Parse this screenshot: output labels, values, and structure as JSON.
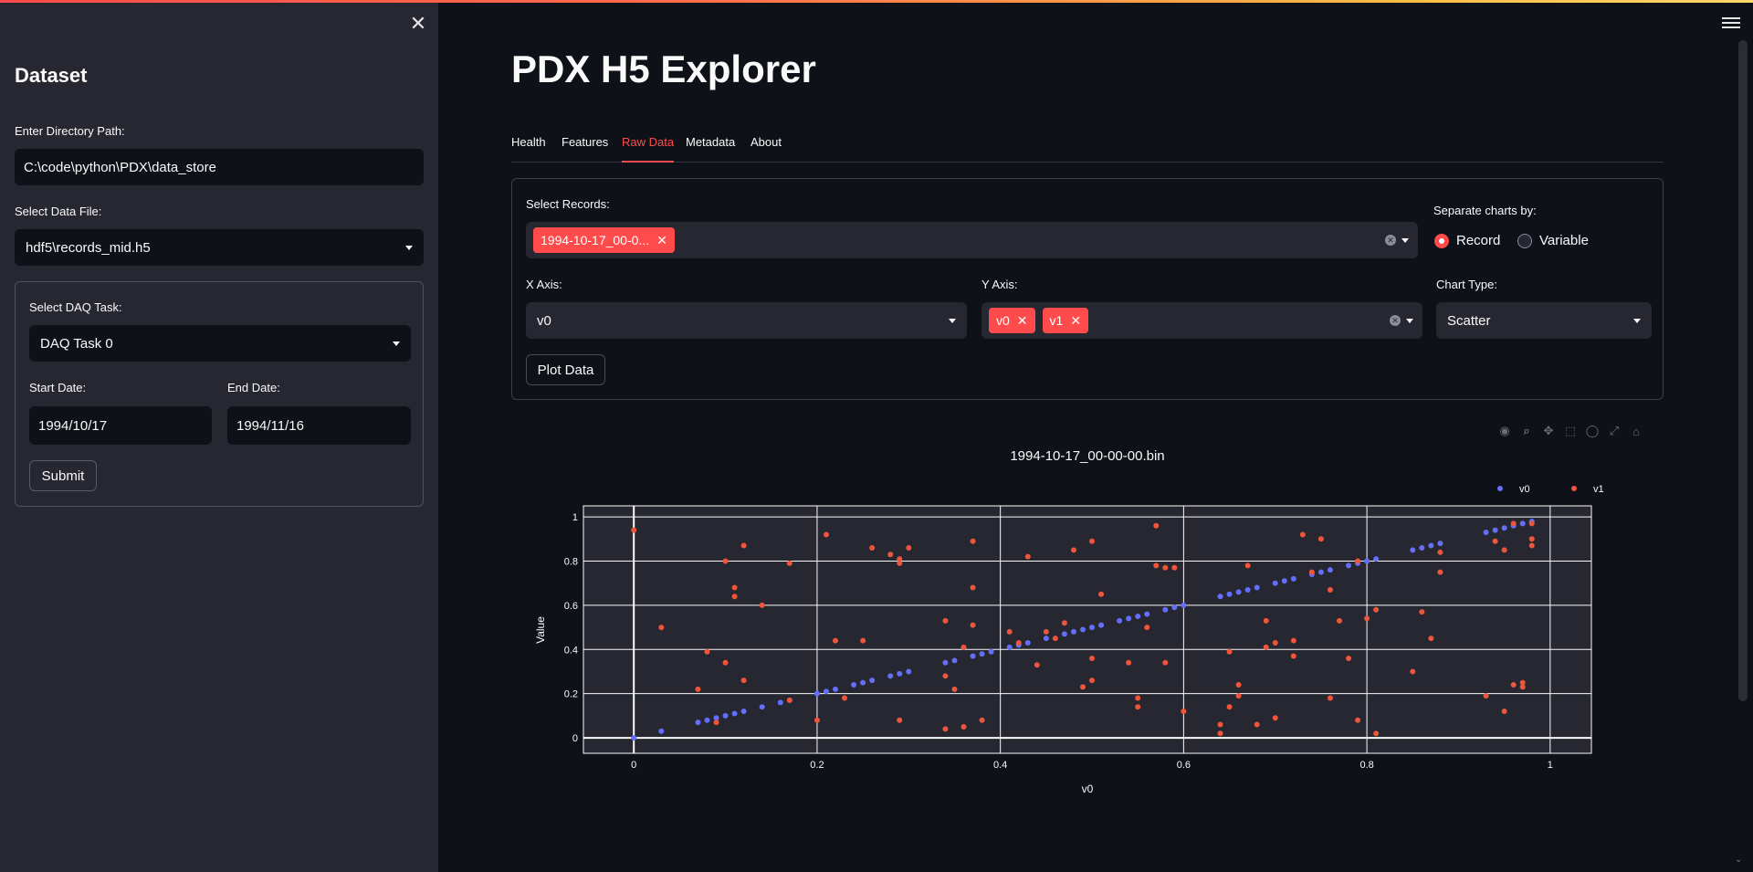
{
  "sidebar": {
    "title": "Dataset",
    "close_icon": "close-icon",
    "directory_label": "Enter Directory Path:",
    "directory_value": "C:\\code\\python\\PDX\\data_store",
    "datafile_label": "Select Data File:",
    "datafile_value": "hdf5\\records_mid.h5",
    "daq_label": "Select DAQ Task:",
    "daq_value": "DAQ Task 0",
    "start_label": "Start Date:",
    "start_value": "1994/10/17",
    "end_label": "End Date:",
    "end_value": "1994/11/16",
    "submit_label": "Submit"
  },
  "main": {
    "title": "PDX H5 Explorer",
    "tabs": [
      {
        "label": "Health"
      },
      {
        "label": "Features"
      },
      {
        "label": "Raw Data",
        "active": true
      },
      {
        "label": "Metadata"
      },
      {
        "label": "About"
      }
    ],
    "records_label": "Select Records:",
    "record_chip": "1994-10-17_00-0...",
    "separate_label": "Separate charts by:",
    "separate_options": [
      "Record",
      "Variable"
    ],
    "separate_selected": "Record",
    "xaxis_label": "X Axis:",
    "xaxis_value": "v0",
    "yaxis_label": "Y Axis:",
    "yaxis_chips": [
      "v0",
      "v1"
    ],
    "charttype_label": "Chart Type:",
    "charttype_value": "Scatter",
    "plot_button": "Plot Data"
  },
  "colors": {
    "accent": "#ff4b4b",
    "v0": "#636efa",
    "v1": "#ef553b"
  },
  "chart_data": {
    "type": "scatter",
    "title": "1994-10-17_00-00-00.bin",
    "xlabel": "v0",
    "ylabel": "Value",
    "xlim": [
      -0.055,
      1.045
    ],
    "ylim": [
      -0.07,
      1.05
    ],
    "xticks": [
      "0",
      "0.2",
      "0.4",
      "0.6",
      "0.8",
      "1"
    ],
    "yticks": [
      "0",
      "0.2",
      "0.4",
      "0.6",
      "0.8",
      "1"
    ],
    "legend_position": "top-right",
    "grid": true,
    "series": [
      {
        "name": "v0",
        "color": "#636efa",
        "points": [
          [
            0.0,
            0.0
          ],
          [
            0.03,
            0.03
          ],
          [
            0.07,
            0.07
          ],
          [
            0.08,
            0.08
          ],
          [
            0.09,
            0.09
          ],
          [
            0.1,
            0.1
          ],
          [
            0.11,
            0.11
          ],
          [
            0.12,
            0.12
          ],
          [
            0.14,
            0.14
          ],
          [
            0.16,
            0.16
          ],
          [
            0.17,
            0.17
          ],
          [
            0.2,
            0.2
          ],
          [
            0.21,
            0.21
          ],
          [
            0.22,
            0.22
          ],
          [
            0.24,
            0.24
          ],
          [
            0.25,
            0.25
          ],
          [
            0.26,
            0.26
          ],
          [
            0.28,
            0.28
          ],
          [
            0.29,
            0.29
          ],
          [
            0.3,
            0.3
          ],
          [
            0.34,
            0.34
          ],
          [
            0.35,
            0.35
          ],
          [
            0.37,
            0.37
          ],
          [
            0.38,
            0.38
          ],
          [
            0.39,
            0.39
          ],
          [
            0.41,
            0.41
          ],
          [
            0.42,
            0.42
          ],
          [
            0.43,
            0.43
          ],
          [
            0.45,
            0.45
          ],
          [
            0.47,
            0.47
          ],
          [
            0.48,
            0.48
          ],
          [
            0.49,
            0.49
          ],
          [
            0.5,
            0.5
          ],
          [
            0.51,
            0.51
          ],
          [
            0.53,
            0.53
          ],
          [
            0.54,
            0.54
          ],
          [
            0.55,
            0.55
          ],
          [
            0.56,
            0.56
          ],
          [
            0.58,
            0.58
          ],
          [
            0.59,
            0.59
          ],
          [
            0.6,
            0.6
          ],
          [
            0.64,
            0.64
          ],
          [
            0.65,
            0.65
          ],
          [
            0.66,
            0.66
          ],
          [
            0.67,
            0.67
          ],
          [
            0.68,
            0.68
          ],
          [
            0.7,
            0.7
          ],
          [
            0.71,
            0.71
          ],
          [
            0.72,
            0.72
          ],
          [
            0.74,
            0.74
          ],
          [
            0.75,
            0.75
          ],
          [
            0.76,
            0.76
          ],
          [
            0.78,
            0.78
          ],
          [
            0.79,
            0.79
          ],
          [
            0.8,
            0.8
          ],
          [
            0.81,
            0.81
          ],
          [
            0.85,
            0.85
          ],
          [
            0.86,
            0.86
          ],
          [
            0.87,
            0.87
          ],
          [
            0.88,
            0.88
          ],
          [
            0.93,
            0.93
          ],
          [
            0.94,
            0.94
          ],
          [
            0.95,
            0.95
          ],
          [
            0.96,
            0.96
          ],
          [
            0.97,
            0.97
          ],
          [
            0.98,
            0.98
          ]
        ]
      },
      {
        "name": "v1",
        "color": "#ef553b",
        "points": [
          [
            0.0,
            0.94
          ],
          [
            0.03,
            0.5
          ],
          [
            0.07,
            0.22
          ],
          [
            0.08,
            0.39
          ],
          [
            0.09,
            0.07
          ],
          [
            0.1,
            0.8
          ],
          [
            0.1,
            0.34
          ],
          [
            0.11,
            0.68
          ],
          [
            0.11,
            0.64
          ],
          [
            0.12,
            0.87
          ],
          [
            0.12,
            0.26
          ],
          [
            0.14,
            0.6
          ],
          [
            0.17,
            0.79
          ],
          [
            0.17,
            0.17
          ],
          [
            0.2,
            0.08
          ],
          [
            0.21,
            0.92
          ],
          [
            0.22,
            0.44
          ],
          [
            0.23,
            0.18
          ],
          [
            0.25,
            0.44
          ],
          [
            0.26,
            0.86
          ],
          [
            0.28,
            0.83
          ],
          [
            0.29,
            0.79
          ],
          [
            0.29,
            0.81
          ],
          [
            0.29,
            0.08
          ],
          [
            0.3,
            0.86
          ],
          [
            0.34,
            0.28
          ],
          [
            0.34,
            0.53
          ],
          [
            0.34,
            0.04
          ],
          [
            0.35,
            0.22
          ],
          [
            0.36,
            0.41
          ],
          [
            0.36,
            0.05
          ],
          [
            0.37,
            0.51
          ],
          [
            0.37,
            0.89
          ],
          [
            0.37,
            0.68
          ],
          [
            0.38,
            0.08
          ],
          [
            0.41,
            0.48
          ],
          [
            0.42,
            0.43
          ],
          [
            0.43,
            0.82
          ],
          [
            0.44,
            0.33
          ],
          [
            0.45,
            0.48
          ],
          [
            0.46,
            0.45
          ],
          [
            0.47,
            0.52
          ],
          [
            0.48,
            0.85
          ],
          [
            0.49,
            0.23
          ],
          [
            0.5,
            0.89
          ],
          [
            0.5,
            0.26
          ],
          [
            0.5,
            0.36
          ],
          [
            0.51,
            0.65
          ],
          [
            0.54,
            0.34
          ],
          [
            0.55,
            0.18
          ],
          [
            0.55,
            0.14
          ],
          [
            0.56,
            0.5
          ],
          [
            0.57,
            0.96
          ],
          [
            0.57,
            0.78
          ],
          [
            0.58,
            0.77
          ],
          [
            0.58,
            0.34
          ],
          [
            0.59,
            0.77
          ],
          [
            0.6,
            0.12
          ],
          [
            0.64,
            0.06
          ],
          [
            0.64,
            0.02
          ],
          [
            0.65,
            0.39
          ],
          [
            0.65,
            0.14
          ],
          [
            0.66,
            0.24
          ],
          [
            0.66,
            0.19
          ],
          [
            0.67,
            0.78
          ],
          [
            0.68,
            0.06
          ],
          [
            0.69,
            0.41
          ],
          [
            0.69,
            0.53
          ],
          [
            0.7,
            0.09
          ],
          [
            0.7,
            0.43
          ],
          [
            0.72,
            0.44
          ],
          [
            0.72,
            0.37
          ],
          [
            0.73,
            0.92
          ],
          [
            0.74,
            0.75
          ],
          [
            0.75,
            0.9
          ],
          [
            0.76,
            0.67
          ],
          [
            0.76,
            0.18
          ],
          [
            0.77,
            0.53
          ],
          [
            0.78,
            0.36
          ],
          [
            0.79,
            0.8
          ],
          [
            0.79,
            0.08
          ],
          [
            0.8,
            0.54
          ],
          [
            0.81,
            0.58
          ],
          [
            0.81,
            0.02
          ],
          [
            0.85,
            0.3
          ],
          [
            0.86,
            0.57
          ],
          [
            0.87,
            0.45
          ],
          [
            0.88,
            0.75
          ],
          [
            0.88,
            0.84
          ],
          [
            0.93,
            0.19
          ],
          [
            0.94,
            0.89
          ],
          [
            0.95,
            0.85
          ],
          [
            0.95,
            0.12
          ],
          [
            0.96,
            0.24
          ],
          [
            0.96,
            0.97
          ],
          [
            0.97,
            0.25
          ],
          [
            0.97,
            0.23
          ],
          [
            0.98,
            0.97
          ],
          [
            0.98,
            0.9
          ],
          [
            0.98,
            0.87
          ]
        ]
      }
    ]
  }
}
